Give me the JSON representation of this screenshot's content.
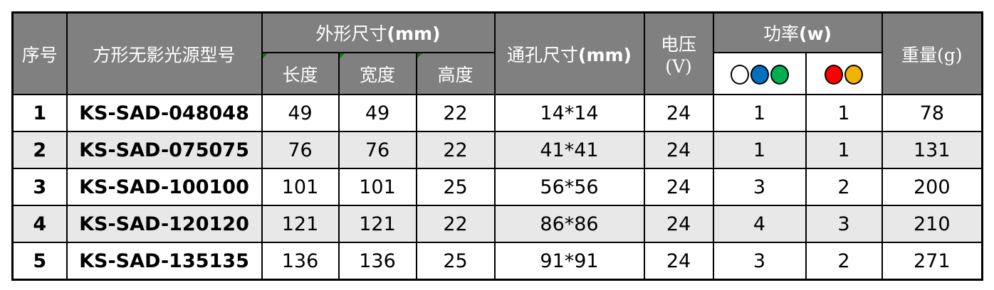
{
  "header": {
    "index": "序号",
    "model": "方形无影光源型号",
    "outer_size": "外形尺寸",
    "outer_unit": "(mm)",
    "length": "长度",
    "width": "宽度",
    "height": "高度",
    "hole_size": "通孔尺寸",
    "hole_unit": "(mm)",
    "voltage": "电压",
    "voltage_unit": "(V)",
    "power": "功率",
    "power_unit": "(w)",
    "weight": "重量(g)",
    "power_group1_colors": [
      "#ffffff",
      "#0070c0",
      "#00b050"
    ],
    "power_group2_colors": [
      "#ff0000",
      "#f0b400"
    ]
  },
  "rows": [
    {
      "index": "1",
      "model": "KS-SAD-048048",
      "length": "49",
      "width": "49",
      "height": "22",
      "hole": "14*14",
      "voltage": "24",
      "power1": "1",
      "power2": "1",
      "weight": "78"
    },
    {
      "index": "2",
      "model": "KS-SAD-075075",
      "length": "76",
      "width": "76",
      "height": "22",
      "hole": "41*41",
      "voltage": "24",
      "power1": "1",
      "power2": "1",
      "weight": "131"
    },
    {
      "index": "3",
      "model": "KS-SAD-100100",
      "length": "101",
      "width": "101",
      "height": "25",
      "hole": "56*56",
      "voltage": "24",
      "power1": "3",
      "power2": "2",
      "weight": "200"
    },
    {
      "index": "4",
      "model": "KS-SAD-120120",
      "length": "121",
      "width": "121",
      "height": "22",
      "hole": "86*86",
      "voltage": "24",
      "power1": "4",
      "power2": "3",
      "weight": "210"
    },
    {
      "index": "5",
      "model": "KS-SAD-135135",
      "length": "136",
      "width": "136",
      "height": "25",
      "hole": "91*91",
      "voltage": "24",
      "power1": "3",
      "power2": "2",
      "weight": "271"
    }
  ]
}
